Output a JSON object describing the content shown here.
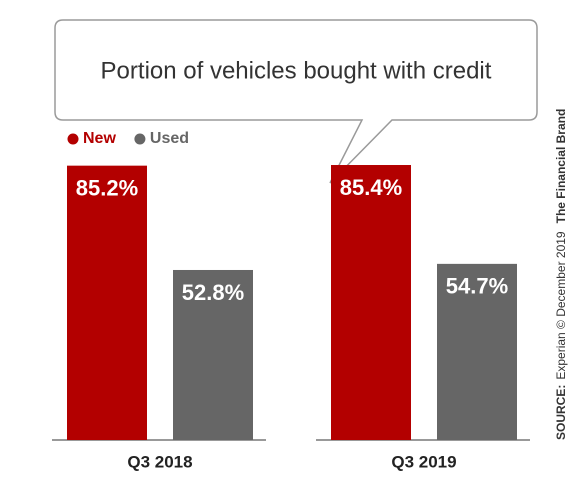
{
  "chart_data": {
    "type": "bar",
    "title": "Portion of vehicles bought with credit",
    "categories": [
      "Q3 2018",
      "Q3 2019"
    ],
    "series": [
      {
        "name": "New",
        "color": "#b30000",
        "values": [
          85.2,
          85.4
        ],
        "value_labels": [
          "85.2%",
          "85.4%"
        ]
      },
      {
        "name": "Used",
        "color": "#666666",
        "values": [
          52.8,
          54.7
        ],
        "value_labels": [
          "52.8%",
          "54.7%"
        ]
      }
    ],
    "source_label": "SOURCE:",
    "source": "Experian © December 2019",
    "brand": "The Financial Brand"
  }
}
